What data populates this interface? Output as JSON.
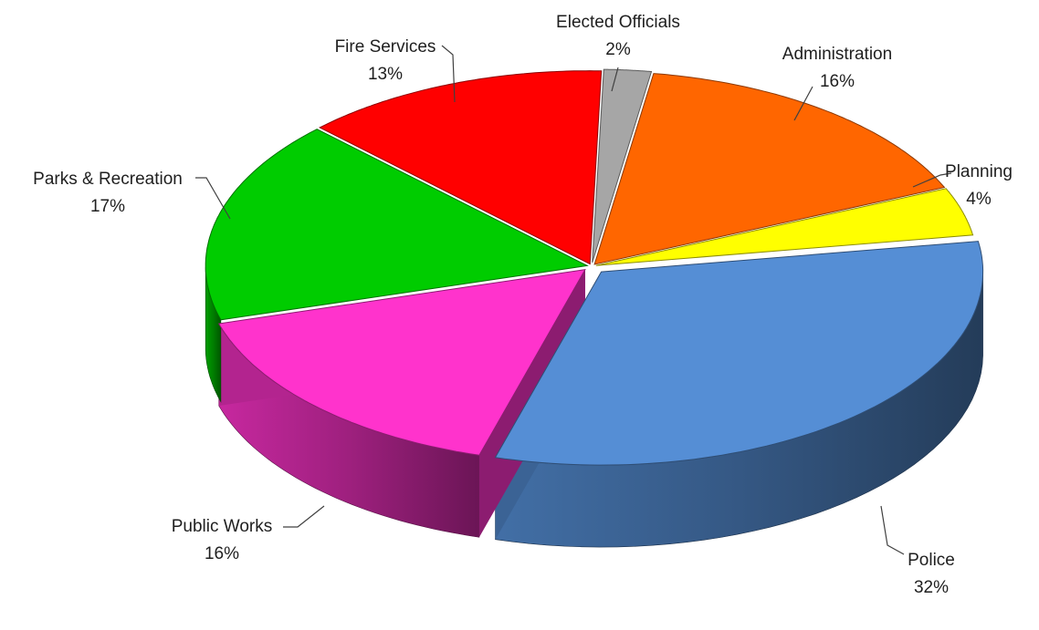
{
  "chart_data": {
    "type": "pie",
    "title": "",
    "legend": "none",
    "slices": [
      {
        "label": "Elected Officials",
        "value": 2,
        "value_label": "2%",
        "color": "#a6a6a6"
      },
      {
        "label": "Administration",
        "value": 16,
        "value_label": "16%",
        "color": "#ff6600"
      },
      {
        "label": "Planning",
        "value": 4,
        "value_label": "4%",
        "color": "#ffff00"
      },
      {
        "label": "Police",
        "value": 32,
        "value_label": "32%",
        "color": "#558ed5"
      },
      {
        "label": "Public Works",
        "value": 16,
        "value_label": "16%",
        "color": "#ff33cc"
      },
      {
        "label": "Parks & Recreation",
        "value": 17,
        "value_label": "17%",
        "color": "#00cc00"
      },
      {
        "label": "Fire Services",
        "value": 13,
        "value_label": "13%",
        "color": "#ff0000"
      }
    ]
  }
}
